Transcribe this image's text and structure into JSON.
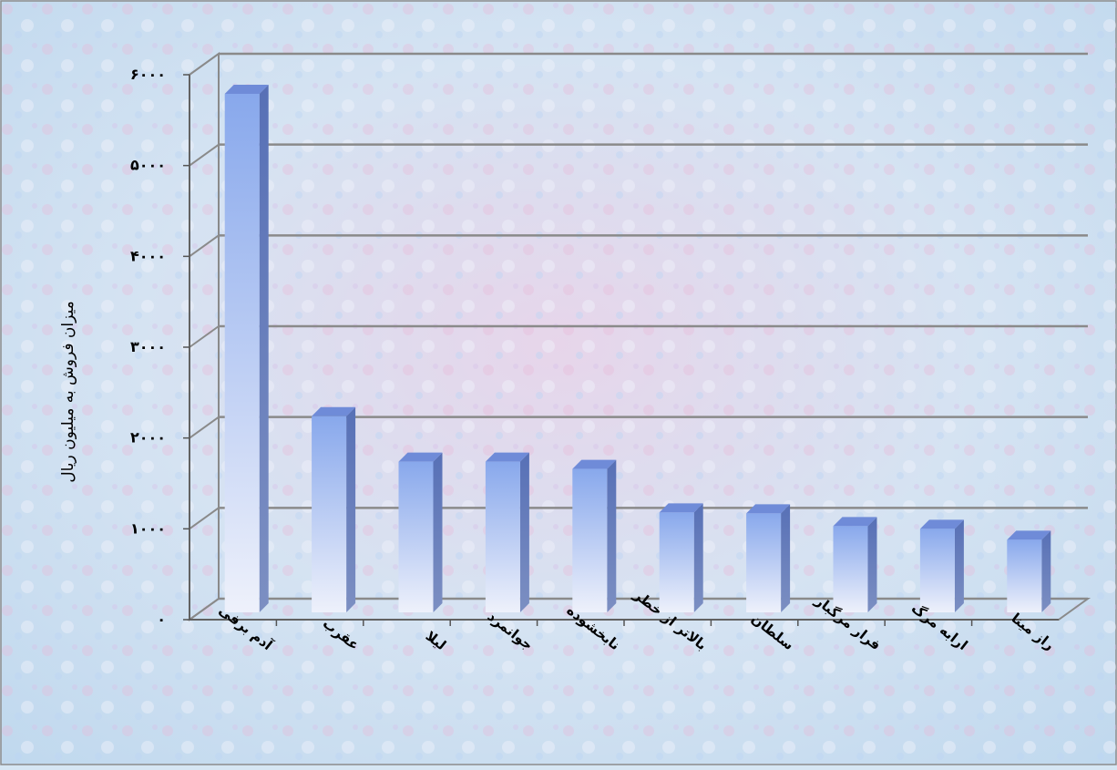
{
  "chart_data": {
    "type": "bar",
    "categories": [
      "آدم برفی",
      "عقرب",
      "لیلا",
      "جوانمرد",
      "نابخشوده",
      "بالاتر از خطر",
      "سلطان",
      "فرار مرگبار",
      "ارابه مرگ",
      "راز مینا"
    ],
    "values": [
      5870,
      2320,
      1820,
      1820,
      1740,
      1260,
      1250,
      1110,
      1080,
      960
    ],
    "y_tick_labels": [
      "۰",
      "۱۰۰۰",
      "۲۰۰۰",
      "۳۰۰۰",
      "۴۰۰۰",
      "۵۰۰۰",
      "۶۰۰۰"
    ],
    "ylabel": "میزان فروش به میلیون ریال",
    "xlabel": "",
    "ylim": [
      0,
      6000
    ],
    "grid": true,
    "colors": {
      "bar_top": "#88a8ec",
      "bar_bottom": "#eef1fb",
      "bar_side": "#5770b6",
      "bar_cap": "#6f8bd8",
      "grid": "#8a8a8a",
      "background": "#d6e6f3"
    }
  }
}
